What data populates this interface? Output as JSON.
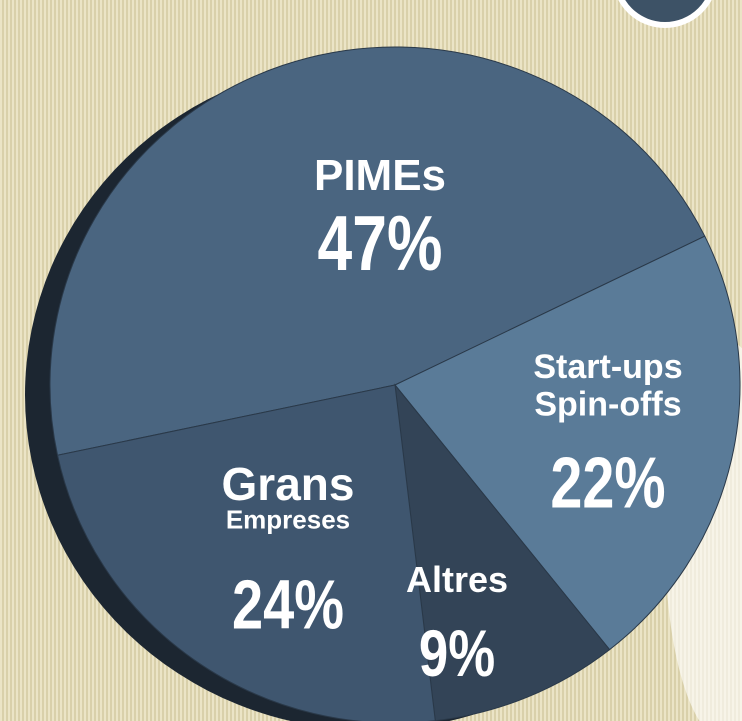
{
  "chart_data": {
    "type": "pie",
    "categories": [
      "PIMEs",
      "Start-ups Spin-offs",
      "Altres",
      "Grans Empreses"
    ],
    "values": [
      47,
      22,
      9,
      24
    ],
    "value_labels": [
      "47%",
      "22%",
      "9%",
      "24%"
    ],
    "colors": [
      "#4a6580",
      "#5a7b98",
      "#334457",
      "#3f566f"
    ]
  }
}
